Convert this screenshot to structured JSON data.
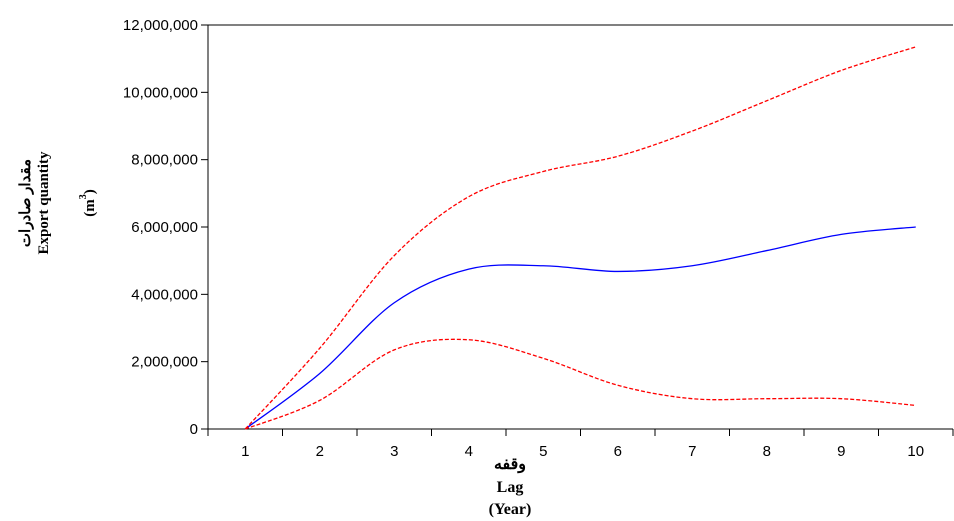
{
  "chart_data": {
    "type": "line",
    "x": [
      1,
      2,
      3,
      4,
      5,
      6,
      7,
      8,
      9,
      10
    ],
    "series": [
      {
        "values": [
          0,
          1650000,
          3750000,
          4750000,
          4850000,
          4680000,
          4850000,
          5300000,
          5780000,
          6000000
        ],
        "color": "#0000ff",
        "style": "solid"
      },
      {
        "values": [
          0,
          2400000,
          5150000,
          6900000,
          7650000,
          8100000,
          8850000,
          9750000,
          10650000,
          11350000
        ],
        "color": "#ff0000",
        "style": "dashed"
      },
      {
        "values": [
          0,
          850000,
          2350000,
          2650000,
          2100000,
          1300000,
          900000,
          900000,
          900000,
          700000
        ],
        "color": "#ff0000",
        "style": "dashed"
      }
    ],
    "xticks": [
      "1",
      "2",
      "3",
      "4",
      "5",
      "6",
      "7",
      "8",
      "9",
      "10"
    ],
    "yticks": [
      "0",
      "2,000,000",
      "4,000,000",
      "6,000,000",
      "8,000,000",
      "10,000,000",
      "12,000,000"
    ],
    "ytick_values": [
      0,
      2000000,
      4000000,
      6000000,
      8000000,
      10000000,
      12000000
    ],
    "xlim": [
      0.5,
      10.5
    ],
    "ylim": [
      0,
      12000000
    ],
    "grid": false,
    "ylabel": {
      "line1": "مقدار صادرات",
      "line2": "Export quantity",
      "line3_pre": "(m",
      "line3_sup": "3",
      "line3_post": ")"
    },
    "xlabel": {
      "line1": "وقفه",
      "line2": "Lag",
      "line3": "(Year)"
    }
  }
}
